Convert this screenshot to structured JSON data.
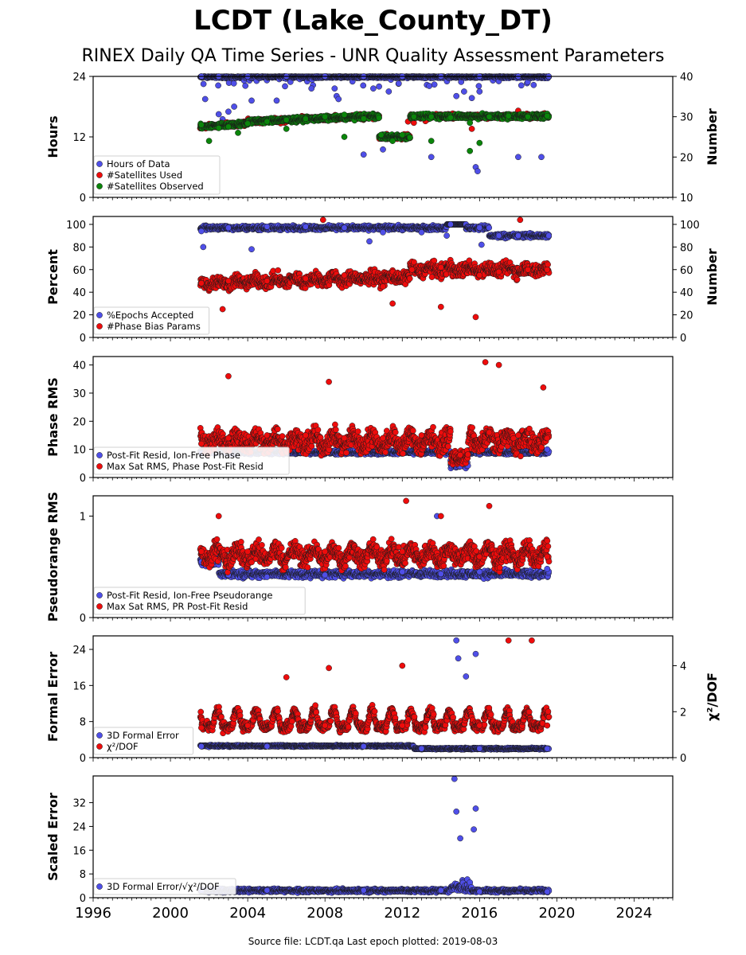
{
  "title": "LCDT (Lake_County_DT)",
  "subtitle": "RINEX Daily QA Time Series - UNR Quality Assessment Parameters",
  "footer": "Source file: LCDT.qa Last epoch plotted: 2019-08-03",
  "colors": {
    "blue": "#4f4fe8",
    "red": "#ee0c0c",
    "green": "#0a850a",
    "edge": "#1a1a1a"
  },
  "x_axis": {
    "range": [
      1996.0,
      2026.0
    ],
    "ticks": [
      1996,
      2000,
      2004,
      2008,
      2012,
      2016,
      2020,
      2024
    ],
    "tick_labels": [
      "1996",
      "2000",
      "2004",
      "2008",
      "2012",
      "2016",
      "2020",
      "2024"
    ]
  },
  "chart_data": [
    {
      "type": "scatter",
      "panel": "hours",
      "ylabel": "Hours",
      "ylim": [
        0,
        24
      ],
      "yticks": [
        0,
        12,
        24
      ],
      "y2label": "Number",
      "y2lim": [
        10,
        40
      ],
      "y2ticks": [
        10,
        20,
        30,
        40
      ],
      "legend_placement": "lower-left",
      "series": [
        {
          "name": "Hours of Data",
          "color": "blue",
          "axis": "left",
          "pattern": "hours",
          "points": [
            [
              2001.6,
              24
            ],
            [
              2002.5,
              24
            ],
            [
              2004.0,
              24
            ],
            [
              2006.0,
              24
            ],
            [
              2008.0,
              24
            ],
            [
              2010.0,
              24
            ],
            [
              2012.0,
              24
            ],
            [
              2014.0,
              24
            ],
            [
              2016.0,
              24
            ],
            [
              2018.0,
              24
            ],
            [
              2019.58,
              24
            ],
            [
              2001.8,
              19.5
            ],
            [
              2002.5,
              16.5
            ],
            [
              2002.7,
              15.5
            ],
            [
              2003.0,
              17.0
            ],
            [
              2003.3,
              18.0
            ],
            [
              2004.2,
              19.2
            ],
            [
              2005.5,
              19.2
            ],
            [
              2007.3,
              21.6
            ],
            [
              2008.5,
              21.6
            ],
            [
              2008.6,
              20.1
            ],
            [
              2008.7,
              19.5
            ],
            [
              2010.5,
              21.6
            ],
            [
              2010.8,
              22.0
            ],
            [
              2011.3,
              21.0
            ],
            [
              2013.4,
              22.1
            ],
            [
              2014.8,
              20.1
            ],
            [
              2015.2,
              21.0
            ],
            [
              2015.6,
              19.7
            ],
            [
              2016.0,
              21.0
            ],
            [
              2018.8,
              22.3
            ],
            [
              2010.0,
              8.5
            ],
            [
              2011.0,
              9.5
            ],
            [
              2013.5,
              8.0
            ],
            [
              2015.8,
              6.0
            ],
            [
              2015.9,
              5.2
            ],
            [
              2018.0,
              8.0
            ],
            [
              2019.2,
              8.0
            ]
          ]
        },
        {
          "name": "#Satellites Used",
          "color": "red",
          "axis": "right",
          "pattern": "satellites",
          "points": [
            [
              2012.3,
              28.8
            ],
            [
              2012.6,
              28.5
            ],
            [
              2013.2,
              28.9
            ],
            [
              2018.0,
              31.5
            ],
            [
              2017.2,
              29.8
            ],
            [
              2015.6,
              27.0
            ]
          ]
        },
        {
          "name": "#Satellites Observed",
          "color": "green",
          "axis": "right",
          "pattern": "satellites",
          "points": [
            [
              2001.6,
              28.0
            ],
            [
              2002.5,
              27.2
            ],
            [
              2003.0,
              27.5
            ],
            [
              2004.0,
              28.3
            ],
            [
              2005.0,
              28.8
            ],
            [
              2006.0,
              29.2
            ],
            [
              2007.0,
              29.5
            ],
            [
              2008.0,
              30.0
            ],
            [
              2009.0,
              30.5
            ],
            [
              2010.0,
              29.5
            ],
            [
              2010.9,
              25.5
            ],
            [
              2011.5,
              24.0
            ],
            [
              2012.0,
              25.5
            ],
            [
              2012.6,
              30.0
            ],
            [
              2013.5,
              30.0
            ],
            [
              2014.5,
              29.8
            ],
            [
              2015.5,
              28.5
            ],
            [
              2016.5,
              30.0
            ],
            [
              2017.5,
              30.2
            ],
            [
              2018.5,
              30.0
            ],
            [
              2019.5,
              30.2
            ],
            [
              2002.0,
              24.0
            ],
            [
              2003.5,
              26.0
            ],
            [
              2006.0,
              27.0
            ],
            [
              2009.0,
              25.0
            ],
            [
              2013.5,
              24.0
            ],
            [
              2015.5,
              21.5
            ],
            [
              2016.0,
              23.5
            ]
          ]
        }
      ]
    },
    {
      "type": "scatter",
      "panel": "percent",
      "ylabel": "Percent",
      "ylim": [
        0,
        107
      ],
      "yticks": [
        0,
        20,
        40,
        60,
        80,
        100
      ],
      "y2label": "Number",
      "y2lim": [
        0,
        107
      ],
      "y2ticks": [
        0,
        20,
        40,
        60,
        80,
        100
      ],
      "legend_placement": "lower-left",
      "series": [
        {
          "name": "%Epochs Accepted",
          "color": "blue",
          "axis": "left",
          "pattern": "percent",
          "points": [
            [
              2001.6,
              94
            ],
            [
              2003.0,
              97
            ],
            [
              2005.0,
              98
            ],
            [
              2007.0,
              98
            ],
            [
              2009.0,
              97
            ],
            [
              2011.0,
              93
            ],
            [
              2013.0,
              93
            ],
            [
              2014.5,
              100
            ],
            [
              2016.0,
              97
            ],
            [
              2017.0,
              90
            ],
            [
              2018.0,
              90
            ],
            [
              2019.58,
              90
            ],
            [
              2001.7,
              80
            ],
            [
              2004.2,
              78
            ],
            [
              2010.3,
              85
            ],
            [
              2014.3,
              90
            ],
            [
              2016.1,
              82
            ]
          ]
        },
        {
          "name": "#Phase Bias Params",
          "color": "red",
          "axis": "right",
          "pattern": "phasebias",
          "points": [
            [
              2001.6,
              48
            ],
            [
              2003.0,
              50
            ],
            [
              2005.0,
              50
            ],
            [
              2007.0,
              52
            ],
            [
              2009.0,
              55
            ],
            [
              2011.0,
              45
            ],
            [
              2012.5,
              60
            ],
            [
              2014.0,
              62
            ],
            [
              2016.0,
              55
            ],
            [
              2017.0,
              58
            ],
            [
              2018.5,
              60
            ],
            [
              2019.5,
              60
            ],
            [
              2002.7,
              25
            ],
            [
              2007.9,
              104
            ],
            [
              2011.5,
              30
            ],
            [
              2015.8,
              18
            ],
            [
              2018.1,
              104
            ],
            [
              2014.0,
              27
            ]
          ]
        }
      ]
    },
    {
      "type": "scatter",
      "panel": "phase",
      "ylabel": "Phase RMS",
      "ylim": [
        0,
        43
      ],
      "yticks": [
        0,
        10,
        20,
        30,
        40
      ],
      "legend_placement": "lower-left",
      "series": [
        {
          "name": "Post-Fit Resid, Ion-Free Phase",
          "color": "blue",
          "axis": "left",
          "pattern": "phasepost",
          "points": [
            [
              2001.6,
              8.5
            ],
            [
              2004.0,
              9.0
            ],
            [
              2008.0,
              9.0
            ],
            [
              2012.0,
              9.0
            ],
            [
              2014.5,
              6.0
            ],
            [
              2015.0,
              4.0
            ],
            [
              2016.0,
              9.5
            ],
            [
              2019.5,
              10.0
            ]
          ]
        },
        {
          "name": "Max Sat RMS, Phase Post-Fit Resid",
          "color": "red",
          "axis": "left",
          "pattern": "phasemax",
          "points": [
            [
              2001.6,
              12
            ],
            [
              2003.0,
              14
            ],
            [
              2005.0,
              15
            ],
            [
              2007.0,
              15
            ],
            [
              2009.0,
              14
            ],
            [
              2011.0,
              14
            ],
            [
              2013.0,
              15
            ],
            [
              2015.0,
              8
            ],
            [
              2016.5,
              16
            ],
            [
              2018.0,
              15
            ],
            [
              2019.5,
              14
            ],
            [
              2003.0,
              36
            ],
            [
              2008.2,
              34
            ],
            [
              2016.3,
              41
            ],
            [
              2017.0,
              40
            ],
            [
              2019.3,
              32
            ]
          ]
        }
      ]
    },
    {
      "type": "scatter",
      "panel": "pseudorange",
      "ylabel": "Pseudorange RMS",
      "ylim": [
        0,
        1.2
      ],
      "yticks": [
        0,
        1
      ],
      "legend_placement": "lower-left",
      "series": [
        {
          "name": "Post-Fit Resid, Ion-Free Pseudorange",
          "color": "blue",
          "axis": "left",
          "pattern": "prpost",
          "points": [
            [
              2001.6,
              0.55
            ],
            [
              2003.0,
              0.42
            ],
            [
              2005.0,
              0.4
            ],
            [
              2008.0,
              0.42
            ],
            [
              2012.0,
              0.45
            ],
            [
              2014.0,
              0.43
            ],
            [
              2016.0,
              0.45
            ],
            [
              2019.5,
              0.48
            ],
            [
              2013.8,
              1.0
            ]
          ]
        },
        {
          "name": "Max Sat RMS, PR Post-Fit Resid",
          "color": "red",
          "axis": "left",
          "pattern": "prmax",
          "points": [
            [
              2001.6,
              0.65
            ],
            [
              2004.0,
              0.65
            ],
            [
              2008.0,
              0.65
            ],
            [
              2012.0,
              0.65
            ],
            [
              2016.0,
              0.6
            ],
            [
              2019.5,
              0.6
            ],
            [
              2012.2,
              1.15
            ],
            [
              2016.5,
              1.1
            ],
            [
              2014.0,
              1.0
            ],
            [
              2002.5,
              1.0
            ]
          ]
        }
      ]
    },
    {
      "type": "scatter",
      "panel": "formal",
      "ylabel": "Formal Error",
      "ylim": [
        0,
        27
      ],
      "yticks": [
        0,
        8,
        16,
        24
      ],
      "y2label": "χ²/DOF",
      "y2lim": [
        0,
        5.3
      ],
      "y2ticks": [
        0,
        2,
        4
      ],
      "legend_placement": "lower-left",
      "series": [
        {
          "name": "3D Formal Error",
          "color": "blue",
          "axis": "left",
          "pattern": "formal",
          "points": [
            [
              2001.6,
              2.5
            ],
            [
              2005.0,
              2.5
            ],
            [
              2010.0,
              2.5
            ],
            [
              2013.0,
              2.0
            ],
            [
              2016.0,
              2.0
            ],
            [
              2019.5,
              2.0
            ],
            [
              2014.8,
              26
            ],
            [
              2014.9,
              22
            ],
            [
              2015.8,
              23
            ],
            [
              2015.3,
              18
            ]
          ]
        },
        {
          "name": "χ²/DOF",
          "color": "red",
          "axis": "right",
          "pattern": "chi",
          "points": [
            [
              2001.6,
              1.3
            ],
            [
              2004.0,
              1.4
            ],
            [
              2008.0,
              1.4
            ],
            [
              2012.0,
              1.4
            ],
            [
              2016.0,
              1.4
            ],
            [
              2019.5,
              1.4
            ],
            [
              2008.2,
              3.9
            ],
            [
              2012.0,
              4.0
            ],
            [
              2017.5,
              5.1
            ],
            [
              2018.7,
              5.1
            ],
            [
              2006.0,
              3.5
            ]
          ]
        }
      ]
    },
    {
      "type": "scatter",
      "panel": "scaled",
      "ylabel": "Scaled Error",
      "ylim": [
        0,
        41
      ],
      "yticks": [
        0,
        8,
        16,
        24,
        32
      ],
      "legend_placement": "lower-left",
      "series": [
        {
          "name": "3D Formal Error/√χ²/DOF",
          "color": "blue",
          "axis": "left",
          "pattern": "scaled",
          "points": [
            [
              2001.6,
              2.5
            ],
            [
              2005.0,
              2.5
            ],
            [
              2010.0,
              2.5
            ],
            [
              2014.0,
              2.5
            ],
            [
              2016.0,
              2.0
            ],
            [
              2019.5,
              2.0
            ],
            [
              2014.7,
              40
            ],
            [
              2014.8,
              29
            ],
            [
              2015.8,
              30
            ],
            [
              2015.7,
              23
            ],
            [
              2015.0,
              20
            ]
          ]
        }
      ]
    }
  ]
}
